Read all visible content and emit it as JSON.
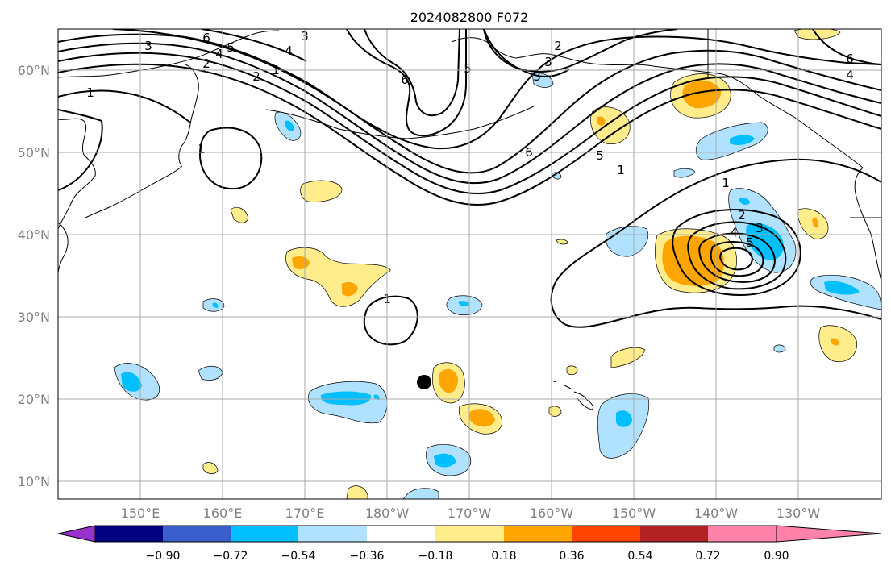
{
  "title": "2024082800 F072",
  "lon_labels": [
    "150°E",
    "160°E",
    "170°E",
    "180°W",
    "170°W",
    "160°W",
    "150°W",
    "140°W",
    "130°W"
  ],
  "lat_labels": [
    "60°N",
    "50°N",
    "40°N",
    "30°N",
    "20°N",
    "10°N"
  ],
  "colorbar": {
    "colors": [
      "#9932cc",
      "#000080",
      "#3a5fcd",
      "#00bfff",
      "#b0e2ff",
      "#ffffff",
      "#ffec8b",
      "#ffa500",
      "#ff4500",
      "#b22222",
      "#ff82ab"
    ],
    "labels": [
      "−0.90",
      "−0.72",
      "−0.54",
      "−0.36",
      "−0.18",
      "0.18",
      "0.36",
      "0.54",
      "0.72",
      "0.90"
    ]
  },
  "contour_labels": [
    "6",
    "5",
    "4",
    "3",
    "2",
    "1",
    "3",
    "4",
    "2",
    "1",
    "1",
    "5",
    "6",
    "3",
    "2",
    "3",
    "6",
    "5",
    "1",
    "6",
    "4",
    "1",
    "2",
    "3",
    "4",
    "5",
    "1"
  ]
}
